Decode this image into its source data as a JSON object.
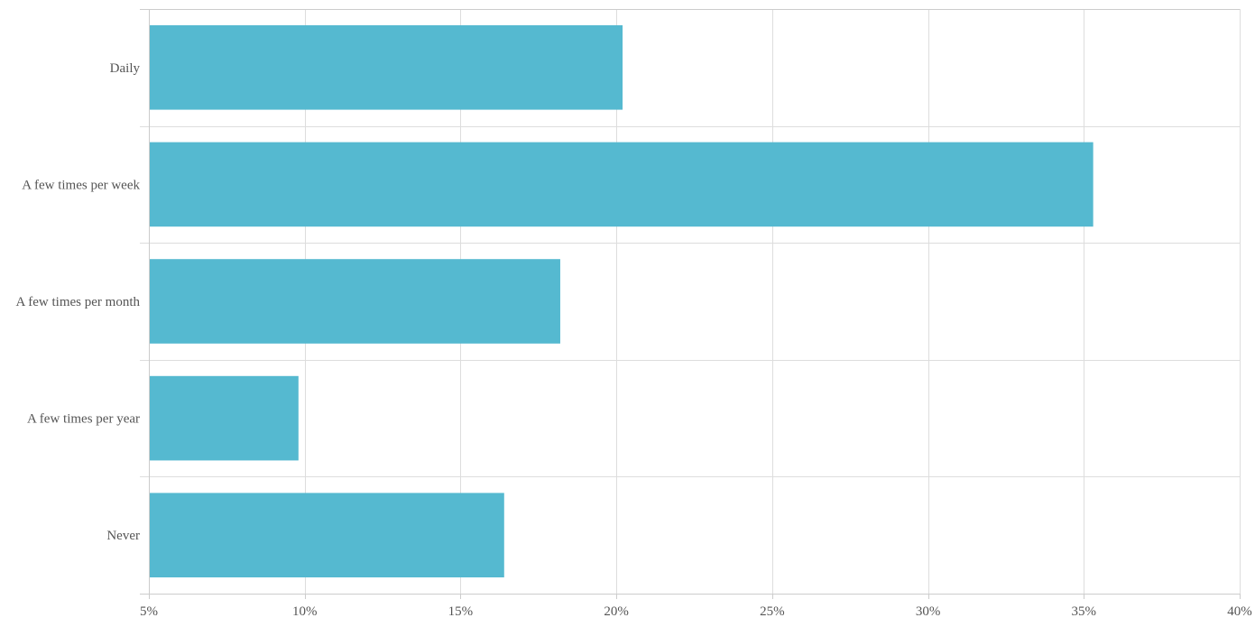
{
  "chart_data": {
    "type": "bar",
    "orientation": "horizontal",
    "categories": [
      "Daily",
      "A few times per week",
      "A few times per month",
      "A few times per year",
      "Never"
    ],
    "values": [
      20.2,
      35.3,
      18.2,
      9.8,
      16.4
    ],
    "xlim": [
      5,
      40
    ],
    "x_ticks": [
      5,
      10,
      15,
      20,
      25,
      30,
      35,
      40
    ],
    "tick_suffix": "%",
    "grid": true,
    "bar_color": "#55b9d0"
  }
}
